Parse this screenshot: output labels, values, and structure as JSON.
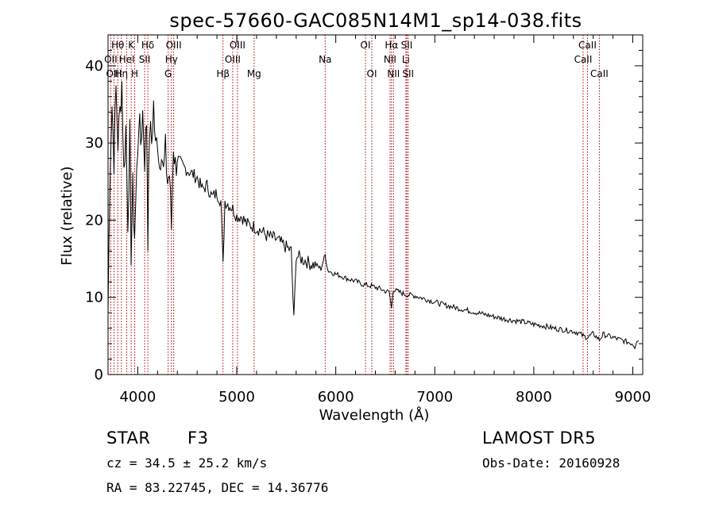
{
  "chart_data": {
    "type": "line",
    "title": "spec-57660-GAC085N14M1_sp14-038.fits",
    "xlabel": "Wavelength (Å)",
    "ylabel": "Flux (relative)",
    "xlim": [
      3700,
      9100
    ],
    "ylim": [
      0,
      44
    ],
    "x_ticks": [
      4000,
      5000,
      6000,
      7000,
      8000,
      9000
    ],
    "x_tick_labels": [
      "4000",
      "5000",
      "6000",
      "7000",
      "8000",
      "9000"
    ],
    "y_ticks": [
      0,
      10,
      20,
      30,
      40
    ],
    "y_tick_labels": [
      "0",
      "10",
      "20",
      "30",
      "40"
    ],
    "grid": false,
    "series": [
      {
        "x": [
          3700,
          3720,
          3740,
          3760,
          3780,
          3800,
          3820,
          3840,
          3860,
          3880,
          3900,
          3920,
          3933,
          3950,
          3968,
          3990,
          4010,
          4030,
          4050,
          4070,
          4090,
          4102,
          4120,
          4140,
          4160,
          4180,
          4200,
          4220,
          4240,
          4260,
          4280,
          4300,
          4320,
          4340,
          4360,
          4380,
          4400,
          4450,
          4500,
          4550,
          4600,
          4650,
          4700,
          4750,
          4800,
          4840,
          4861,
          4880,
          4920,
          4960,
          5000,
          5050,
          5100,
          5150,
          5200,
          5250,
          5300,
          5350,
          5400,
          5450,
          5500,
          5550,
          5577,
          5600,
          5650,
          5700,
          5750,
          5800,
          5850,
          5893,
          5920,
          5950,
          6000,
          6050,
          6100,
          6150,
          6200,
          6250,
          6300,
          6350,
          6400,
          6450,
          6500,
          6540,
          6563,
          6580,
          6620,
          6660,
          6700,
          6750,
          6800,
          6850,
          6900,
          6950,
          7000,
          7100,
          7200,
          7300,
          7400,
          7500,
          7600,
          7700,
          7800,
          7900,
          8000,
          8100,
          8200,
          8300,
          8400,
          8450,
          8498,
          8542,
          8600,
          8662,
          8700,
          8750,
          8800,
          8850,
          8900,
          8950,
          9000,
          9020,
          9040,
          9060
        ],
        "y": [
          8,
          27,
          35,
          28,
          37,
          30,
          34,
          38,
          26,
          32,
          20,
          31,
          16,
          24,
          18,
          26,
          33,
          30,
          34,
          28,
          33,
          18,
          32,
          30,
          35,
          29,
          31,
          27,
          30,
          26,
          29,
          25,
          26,
          19,
          30,
          27,
          28,
          27,
          26.5,
          26,
          25.5,
          24,
          24.5,
          23,
          23.5,
          22.5,
          14,
          22.5,
          22,
          21.5,
          20.5,
          20.5,
          19.5,
          19.3,
          19,
          18.6,
          18,
          17.8,
          17.5,
          17,
          16.5,
          16,
          7,
          15.5,
          15,
          14.7,
          14.3,
          14.2,
          13.7,
          15.5,
          13.5,
          13.3,
          13,
          12.8,
          12.5,
          12.3,
          12.1,
          11.8,
          11.6,
          11.5,
          11.3,
          11.1,
          10.8,
          10.7,
          8.5,
          11,
          10.8,
          10.6,
          10.4,
          10.3,
          10.2,
          10,
          9.8,
          9.6,
          9.4,
          9.0,
          8.7,
          8.4,
          8.1,
          7.8,
          7.5,
          7.2,
          7.0,
          6.8,
          6.5,
          6.3,
          6.0,
          5.8,
          5.6,
          5.4,
          5.0,
          4.8,
          5.3,
          4.5,
          5.2,
          5.0,
          4.8,
          4.6,
          4.4,
          4.2,
          4.0,
          3.6,
          4.5,
          4.4
        ]
      }
    ],
    "lines": [
      {
        "label": "Hθ",
        "x": 3798,
        "row": 0,
        "align": "center"
      },
      {
        "label": "OII",
        "x": 3727,
        "row": 1,
        "align": "center"
      },
      {
        "label": "OIII",
        "x": 3760,
        "row": 2,
        "align": "center"
      },
      {
        "label": "K",
        "x": 3934,
        "row": 0,
        "align": "center"
      },
      {
        "label": "HeI",
        "x": 3889,
        "row": 1,
        "align": "center"
      },
      {
        "label": "Hη",
        "x": 3835,
        "row": 2,
        "align": "center"
      },
      {
        "label": "H",
        "x": 3969,
        "row": 2,
        "align": "center"
      },
      {
        "label": "Hδ",
        "x": 4102,
        "row": 0,
        "align": "center"
      },
      {
        "label": "SII",
        "x": 4070,
        "row": 1,
        "align": "center"
      },
      {
        "label": "OIII",
        "x": 4363,
        "row": 0,
        "align": "center"
      },
      {
        "label": "Hγ",
        "x": 4340,
        "row": 1,
        "align": "center"
      },
      {
        "label": "G",
        "x": 4307,
        "row": 2,
        "align": "center"
      },
      {
        "label": "Hβ",
        "x": 4861,
        "row": 2,
        "align": "center"
      },
      {
        "label": "OIII",
        "x": 5007,
        "row": 0,
        "align": "center"
      },
      {
        "label": "OIII",
        "x": 4959,
        "row": 1,
        "align": "center"
      },
      {
        "label": "Mg",
        "x": 5175,
        "row": 2,
        "align": "center"
      },
      {
        "label": "Na",
        "x": 5893,
        "row": 1,
        "align": "center"
      },
      {
        "label": "OI",
        "x": 6300,
        "row": 0,
        "align": "center"
      },
      {
        "label": "OI",
        "x": 6364,
        "row": 2,
        "align": "center"
      },
      {
        "label": "Hα",
        "x": 6563,
        "row": 0,
        "align": "center"
      },
      {
        "label": "NII",
        "x": 6548,
        "row": 1,
        "align": "center"
      },
      {
        "label": "NII",
        "x": 6583,
        "row": 2,
        "align": "center"
      },
      {
        "label": "SII",
        "x": 6717,
        "row": 0,
        "align": "center"
      },
      {
        "label": "Li",
        "x": 6708,
        "row": 1,
        "align": "center"
      },
      {
        "label": "SII",
        "x": 6731,
        "row": 2,
        "align": "center"
      },
      {
        "label": "CaII",
        "x": 8542,
        "row": 0,
        "align": "center"
      },
      {
        "label": "CaII",
        "x": 8498,
        "row": 1,
        "align": "center"
      },
      {
        "label": "CaII",
        "x": 8662,
        "row": 2,
        "align": "center"
      }
    ]
  },
  "info": {
    "object_class": "STAR",
    "subclass": "F3",
    "survey": "LAMOST DR5",
    "cz": "cz = 34.5 ± 25.2 km/s",
    "obs_date": "Obs-Date: 20160928",
    "coords": "RA =  83.22745, DEC =  14.36776"
  },
  "colors": {
    "spectrum": "#000000",
    "marker": "#b00000"
  }
}
